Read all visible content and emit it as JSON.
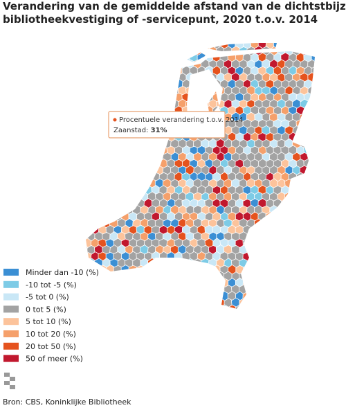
{
  "title": [
    "Verandering van de gemiddelde afstand van de dichtstbijzijnde",
    "bibliotheekvestiging of -servicepunt, 2020 t.o.v. 2014"
  ],
  "tooltip": {
    "heading": "Procentuele verandering t.o.v. 2014",
    "region": "Zaanstad:",
    "value": "31%"
  },
  "legend": [
    {
      "label": "Minder dan -10 (%)",
      "color": "#3b8fd4"
    },
    {
      "label": "-10 tot -5 (%)",
      "color": "#7dcbe6"
    },
    {
      "label": "-5 tot 0 (%)",
      "color": "#c9e7f6"
    },
    {
      "label": "0 tot 5 (%)",
      "color": "#a3a3a3"
    },
    {
      "label": "5 tot 10 (%)",
      "color": "#fcc39b"
    },
    {
      "label": "10 tot 20 (%)",
      "color": "#f5a06b"
    },
    {
      "label": "20 tot 50 (%)",
      "color": "#e5531e"
    },
    {
      "label": "50 of meer (%)",
      "color": "#c1182e"
    }
  ],
  "source": "Bron: CBS, Koninklijke Bibliotheek"
}
